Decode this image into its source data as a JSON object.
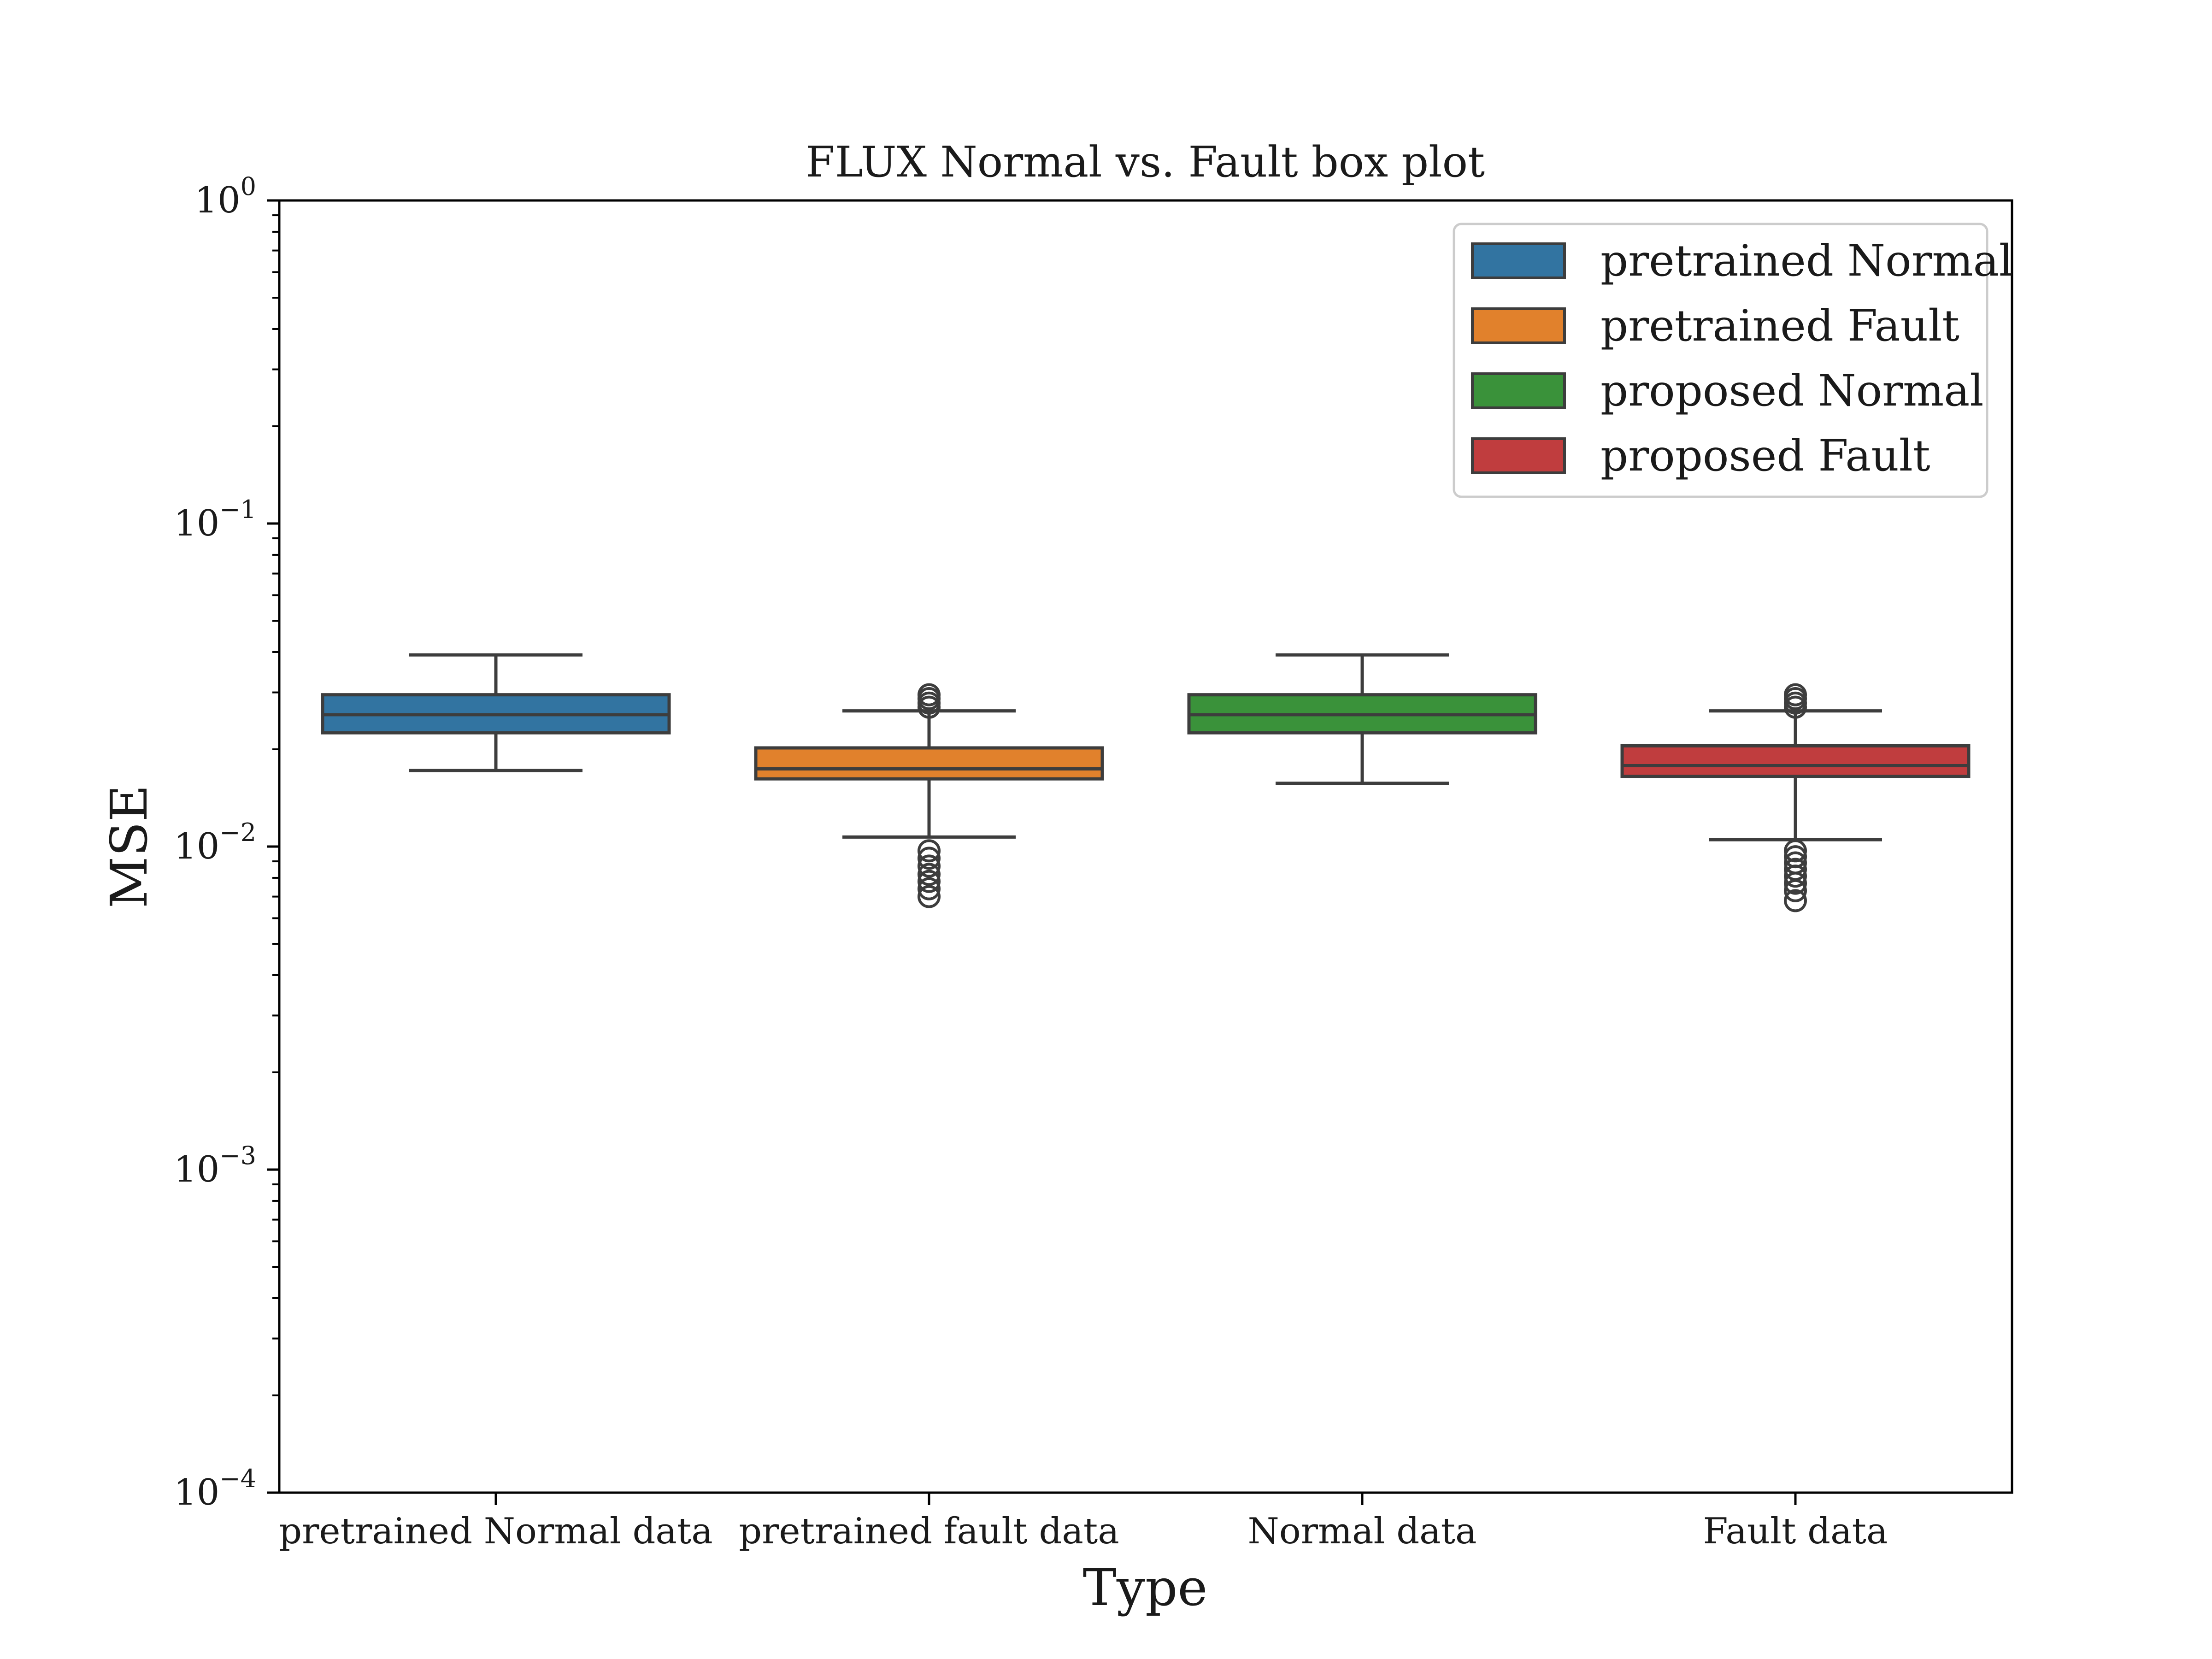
{
  "chart_data": {
    "type": "box",
    "title": "FLUX Normal vs. Fault box plot",
    "xlabel": "Type",
    "ylabel": "MSE",
    "yscale": "log",
    "ylim": [
      0.0001,
      1
    ],
    "y_ticks": [
      {
        "value": 1,
        "base": "10",
        "exp": "0"
      },
      {
        "value": 0.1,
        "base": "10",
        "exp": "−1"
      },
      {
        "value": 0.01,
        "base": "10",
        "exp": "−2"
      },
      {
        "value": 0.001,
        "base": "10",
        "exp": "−3"
      },
      {
        "value": 0.0001,
        "base": "10",
        "exp": "−4"
      }
    ],
    "categories": [
      "pretrained Normal data",
      "pretrained fault data",
      "Normal data",
      "Fault data"
    ],
    "legend": {
      "placement": "top-right",
      "entries": [
        "pretrained Normal",
        "pretrained Fault",
        "proposed Normal",
        "proposed Fault"
      ]
    },
    "grid": false,
    "series": [
      {
        "name": "pretrained Normal",
        "category": "pretrained Normal data",
        "color": "#3274a1",
        "whisker_low": 0.0172,
        "q1": 0.0225,
        "median": 0.0256,
        "q3": 0.0295,
        "whisker_high": 0.0392,
        "outliers": []
      },
      {
        "name": "pretrained Fault",
        "category": "pretrained fault data",
        "color": "#e1812c",
        "whisker_low": 0.0107,
        "q1": 0.0162,
        "median": 0.0174,
        "q3": 0.0202,
        "whisker_high": 0.0263,
        "outliers": [
          0.0295,
          0.0287,
          0.0278,
          0.027,
          0.0097,
          0.0092,
          0.0087,
          0.0082,
          0.0078,
          0.0074,
          0.007
        ]
      },
      {
        "name": "proposed Normal",
        "category": "Normal data",
        "color": "#3a923a",
        "whisker_low": 0.0157,
        "q1": 0.0225,
        "median": 0.0256,
        "q3": 0.0295,
        "whisker_high": 0.0392,
        "outliers": []
      },
      {
        "name": "proposed Fault",
        "category": "Fault data",
        "color": "#c03d3e",
        "whisker_low": 0.0105,
        "q1": 0.0165,
        "median": 0.0178,
        "q3": 0.0205,
        "whisker_high": 0.0263,
        "outliers": [
          0.0295,
          0.0287,
          0.0278,
          0.027,
          0.0097,
          0.0093,
          0.0089,
          0.0085,
          0.0081,
          0.0077,
          0.0073,
          0.0068
        ]
      }
    ]
  }
}
